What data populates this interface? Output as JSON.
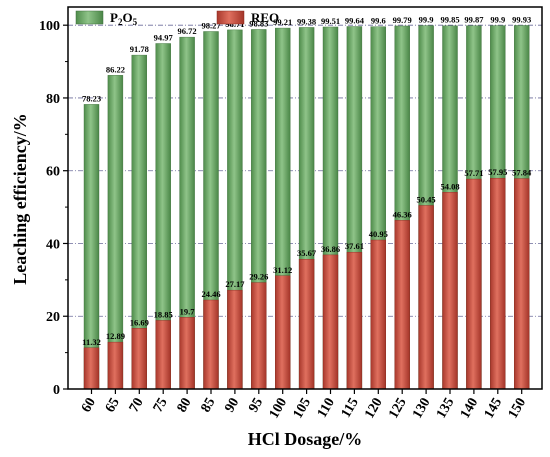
{
  "chart_data": {
    "type": "bar",
    "categories": [
      "60",
      "65",
      "70",
      "75",
      "80",
      "85",
      "90",
      "95",
      "100",
      "105",
      "110",
      "115",
      "120",
      "125",
      "130",
      "135",
      "140",
      "145",
      "150"
    ],
    "series": [
      {
        "name": "P2O5",
        "name_main": "P",
        "name_sub1": "2",
        "name_mid": "O",
        "name_sub2": "5",
        "color": "#5e9e5a",
        "values": [
          78.23,
          86.22,
          91.78,
          94.97,
          96.72,
          98.27,
          98.71,
          98.83,
          99.21,
          99.38,
          99.51,
          99.64,
          99.6,
          99.79,
          99.9,
          99.85,
          99.87,
          99.9,
          99.93
        ],
        "labels": [
          "78.23",
          "86.22",
          "91.78",
          "94.97",
          "96.72",
          "98.27",
          "98.71",
          "98.83",
          "99.21",
          "99.38",
          "99.51",
          "99.64",
          "99.6",
          "99.79",
          "99.9",
          "99.85",
          "99.87",
          "99.9",
          "99.93"
        ]
      },
      {
        "name": "REO",
        "color": "#c74a3b",
        "values": [
          11.32,
          12.89,
          16.69,
          18.85,
          19.7,
          24.46,
          27.17,
          29.26,
          31.12,
          35.67,
          36.86,
          37.61,
          40.95,
          46.36,
          50.45,
          54.08,
          57.71,
          57.95,
          57.84
        ],
        "labels": [
          "11.32",
          "12.89",
          "16.69",
          "18.85",
          "19.7",
          "24.46",
          "27.17",
          "29.26",
          "31.12",
          "35.67",
          "36.86",
          "37.61",
          "40.95",
          "46.36",
          "50.45",
          "54.08",
          "57.71",
          "57.95",
          "57.84"
        ]
      }
    ],
    "xlabel": "HCl Dosage/%",
    "ylabel": "Leaching efficiency/%",
    "ylim": [
      0,
      105
    ],
    "yticks": [
      "0",
      "20",
      "40",
      "60",
      "80",
      "100"
    ],
    "ytick_values": [
      0,
      20,
      40,
      60,
      80,
      100
    ],
    "grid": "horizontal dash-dot",
    "legend": "top"
  }
}
